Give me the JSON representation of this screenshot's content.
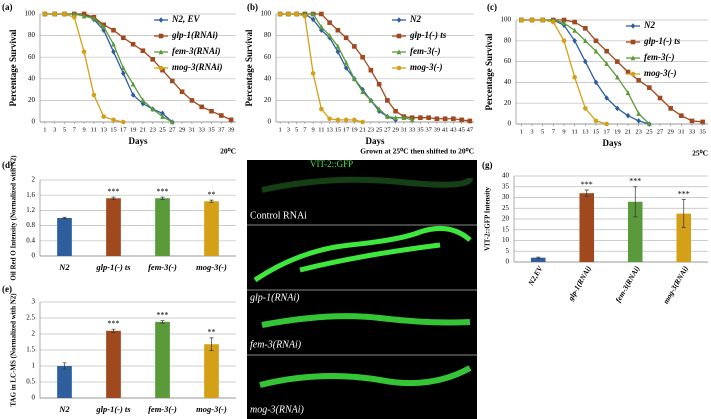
{
  "chart_data": [
    {
      "type": "line",
      "panel": "(a)",
      "x_label": "Days",
      "y_label": "Percentage Survival",
      "annotation": "20⁰C",
      "xlim": [
        0,
        40
      ],
      "xticks": [
        1,
        3,
        5,
        7,
        9,
        11,
        13,
        15,
        17,
        19,
        21,
        23,
        25,
        27,
        29,
        31,
        33,
        35,
        37,
        39
      ],
      "ylim": [
        0,
        100
      ],
      "yticks": [
        0,
        20,
        40,
        60,
        80,
        100
      ],
      "grid": true,
      "legend": "top-right",
      "series": [
        {
          "name": "N2, EV",
          "color": "#2e5e9e",
          "marker": "diamond",
          "x": [
            1,
            3,
            5,
            7,
            9,
            11,
            13,
            15,
            17,
            19,
            21,
            23,
            25,
            27
          ],
          "values": [
            100,
            100,
            100,
            100,
            100,
            95,
            85,
            65,
            45,
            25,
            17,
            12,
            8,
            0
          ]
        },
        {
          "name": "glp-1(RNAi)",
          "color": "#a0481e",
          "marker": "square",
          "x": [
            1,
            3,
            5,
            7,
            9,
            11,
            13,
            15,
            17,
            19,
            21,
            23,
            25,
            27,
            29,
            31,
            33,
            35,
            37,
            39
          ],
          "values": [
            100,
            100,
            100,
            100,
            100,
            97,
            90,
            85,
            78,
            72,
            66,
            58,
            48,
            38,
            28,
            20,
            14,
            10,
            6,
            2
          ]
        },
        {
          "name": "fem-3(RNAi)",
          "color": "#5a9a3a",
          "marker": "triangle",
          "x": [
            1,
            3,
            5,
            7,
            9,
            11,
            13,
            15,
            17,
            19,
            21,
            23,
            25,
            27
          ],
          "values": [
            100,
            100,
            100,
            100,
            98,
            96,
            88,
            72,
            50,
            35,
            20,
            12,
            5,
            0
          ]
        },
        {
          "name": "mog-3(RNAi)",
          "color": "#d4a017",
          "marker": "circle",
          "x": [
            1,
            3,
            5,
            7,
            9,
            11,
            13,
            15,
            17
          ],
          "values": [
            100,
            100,
            100,
            97,
            65,
            25,
            5,
            2,
            0
          ]
        }
      ]
    },
    {
      "type": "line",
      "panel": "(b)",
      "x_label": "Days",
      "y_label": "Percentage Survival",
      "annotation": "Grown at 25⁰C then shifted to 20⁰C",
      "xlim": [
        0,
        48
      ],
      "xticks": [
        1,
        3,
        5,
        7,
        9,
        11,
        13,
        15,
        17,
        19,
        21,
        23,
        25,
        27,
        29,
        31,
        33,
        35,
        37,
        39,
        41,
        43,
        45,
        47
      ],
      "ylim": [
        0,
        100
      ],
      "yticks": [
        0,
        20,
        40,
        60,
        80,
        100
      ],
      "grid": true,
      "legend": "top-right",
      "series": [
        {
          "name": "N2",
          "color": "#2e5e9e",
          "marker": "diamond",
          "x": [
            1,
            3,
            5,
            7,
            9,
            11,
            13,
            15,
            17,
            19,
            21,
            23,
            25,
            27,
            29
          ],
          "values": [
            100,
            100,
            100,
            100,
            95,
            85,
            78,
            65,
            50,
            40,
            30,
            20,
            10,
            5,
            2
          ]
        },
        {
          "name": "glp-1(-) ts",
          "color": "#a0481e",
          "marker": "square",
          "x": [
            1,
            3,
            5,
            7,
            9,
            11,
            13,
            15,
            17,
            19,
            21,
            23,
            25,
            27,
            29,
            31,
            33,
            35,
            37,
            39,
            41,
            43,
            45,
            47
          ],
          "values": [
            100,
            100,
            100,
            100,
            100,
            100,
            92,
            85,
            78,
            70,
            60,
            48,
            35,
            20,
            10,
            5,
            4,
            4,
            4,
            3,
            3,
            3,
            2,
            1
          ]
        },
        {
          "name": "fem-3(-)",
          "color": "#5a9a3a",
          "marker": "triangle",
          "x": [
            1,
            3,
            5,
            7,
            9,
            11,
            13,
            15,
            17,
            19,
            21,
            23,
            25,
            27,
            29,
            31,
            33
          ],
          "values": [
            100,
            100,
            100,
            100,
            100,
            88,
            80,
            70,
            55,
            40,
            28,
            20,
            12,
            5,
            4,
            4,
            2
          ]
        },
        {
          "name": "mog-3(-)",
          "color": "#d4a017",
          "marker": "circle",
          "x": [
            1,
            3,
            5,
            7,
            9,
            11,
            13,
            15,
            17,
            19,
            21
          ],
          "values": [
            100,
            100,
            100,
            98,
            45,
            12,
            3,
            2,
            2,
            2,
            0
          ]
        }
      ]
    },
    {
      "type": "line",
      "panel": "(c)",
      "x_label": "Days",
      "y_label": "Percentage Survival",
      "annotation": "25⁰C",
      "xlim": [
        0,
        36
      ],
      "xticks": [
        1,
        3,
        5,
        7,
        9,
        11,
        13,
        15,
        17,
        19,
        21,
        23,
        25,
        27,
        29,
        31,
        33,
        35
      ],
      "ylim": [
        0,
        100
      ],
      "yticks": [
        0,
        20,
        40,
        60,
        80,
        100
      ],
      "grid": true,
      "legend": "top-right",
      "series": [
        {
          "name": "N2",
          "color": "#2e5e9e",
          "marker": "diamond",
          "x": [
            1,
            3,
            5,
            7,
            9,
            11,
            13,
            15,
            17,
            19,
            21,
            23,
            25
          ],
          "values": [
            100,
            100,
            100,
            100,
            95,
            80,
            60,
            40,
            25,
            15,
            8,
            3,
            0
          ]
        },
        {
          "name": "glp-1(-) ts",
          "color": "#a0481e",
          "marker": "square",
          "x": [
            1,
            3,
            5,
            7,
            9,
            11,
            13,
            15,
            17,
            19,
            21,
            23,
            25,
            27,
            29,
            31,
            33,
            35
          ],
          "values": [
            100,
            100,
            100,
            100,
            100,
            98,
            92,
            80,
            70,
            60,
            50,
            42,
            35,
            25,
            15,
            8,
            3,
            2
          ]
        },
        {
          "name": "fem-3(-)",
          "color": "#5a9a3a",
          "marker": "triangle",
          "x": [
            1,
            3,
            5,
            7,
            9,
            11,
            13,
            15,
            17,
            19,
            21,
            23,
            25
          ],
          "values": [
            100,
            100,
            100,
            100,
            97,
            90,
            80,
            70,
            58,
            45,
            30,
            10,
            0
          ]
        },
        {
          "name": "mog-3(-)",
          "color": "#d4a017",
          "marker": "circle",
          "x": [
            1,
            3,
            5,
            7,
            9,
            11,
            13,
            15,
            17
          ],
          "values": [
            100,
            100,
            100,
            98,
            80,
            45,
            15,
            3,
            0
          ]
        }
      ]
    },
    {
      "type": "bar",
      "panel": "(d)",
      "y_label": "Oil Red O Intensity (Normalized with N2)",
      "categories": [
        "N2",
        "glp-1(-) ts",
        "fem-3(-)",
        "mog-3(-)"
      ],
      "values": [
        1,
        1.52,
        1.52,
        1.44
      ],
      "errors": [
        0.02,
        0.03,
        0.03,
        0.03
      ],
      "colors": [
        "#2e5e9e",
        "#a0481e",
        "#5a9a3a",
        "#d4a017"
      ],
      "significance": [
        null,
        "***",
        "***",
        "**"
      ],
      "ylim": [
        0,
        2
      ],
      "yticks": [
        0,
        0.4,
        0.8,
        1.2,
        1.6,
        2
      ],
      "grid": true
    },
    {
      "type": "bar",
      "panel": "(e)",
      "y_label": "TAG in LC-MS (Normalized with N2)",
      "categories": [
        "N2",
        "glp-1(-) ts",
        "fem-3(-)",
        "mog-3(-)"
      ],
      "values": [
        1,
        2.1,
        2.38,
        1.68
      ],
      "errors": [
        0.1,
        0.05,
        0.04,
        0.2
      ],
      "colors": [
        "#2e5e9e",
        "#a0481e",
        "#5a9a3a",
        "#d4a017"
      ],
      "significance": [
        null,
        "***",
        "***",
        "**"
      ],
      "ylim": [
        0,
        3
      ],
      "yticks": [
        0,
        0.5,
        1,
        1.5,
        2,
        2.5,
        3
      ],
      "grid": true
    },
    {
      "type": "bar",
      "panel": "(g)",
      "y_label": "VIT-2::GFP Intensity",
      "categories": [
        "N2,EV",
        "glp-1(RNAi)",
        "fem-3(RNAi)",
        "mog-3(RNAi)"
      ],
      "values": [
        2,
        32,
        28,
        22.5
      ],
      "errors": [
        0.3,
        1.5,
        7,
        6.5
      ],
      "colors": [
        "#2e5e9e",
        "#a0481e",
        "#5a9a3a",
        "#d4a017"
      ],
      "significance": [
        null,
        "***",
        "***",
        "***"
      ],
      "ylim": [
        0,
        40
      ],
      "yticks": [
        0,
        5,
        10,
        15,
        20,
        25,
        30,
        35,
        40
      ],
      "grid": true,
      "rotate_labels": true
    }
  ],
  "image_panel": {
    "panel": "(f)",
    "title": "VIT-2::GFP",
    "rows": [
      "Control RNAi",
      "glp-1(RNAi)",
      "fem-3(RNAi)",
      "mog-3(RNAi)"
    ]
  }
}
